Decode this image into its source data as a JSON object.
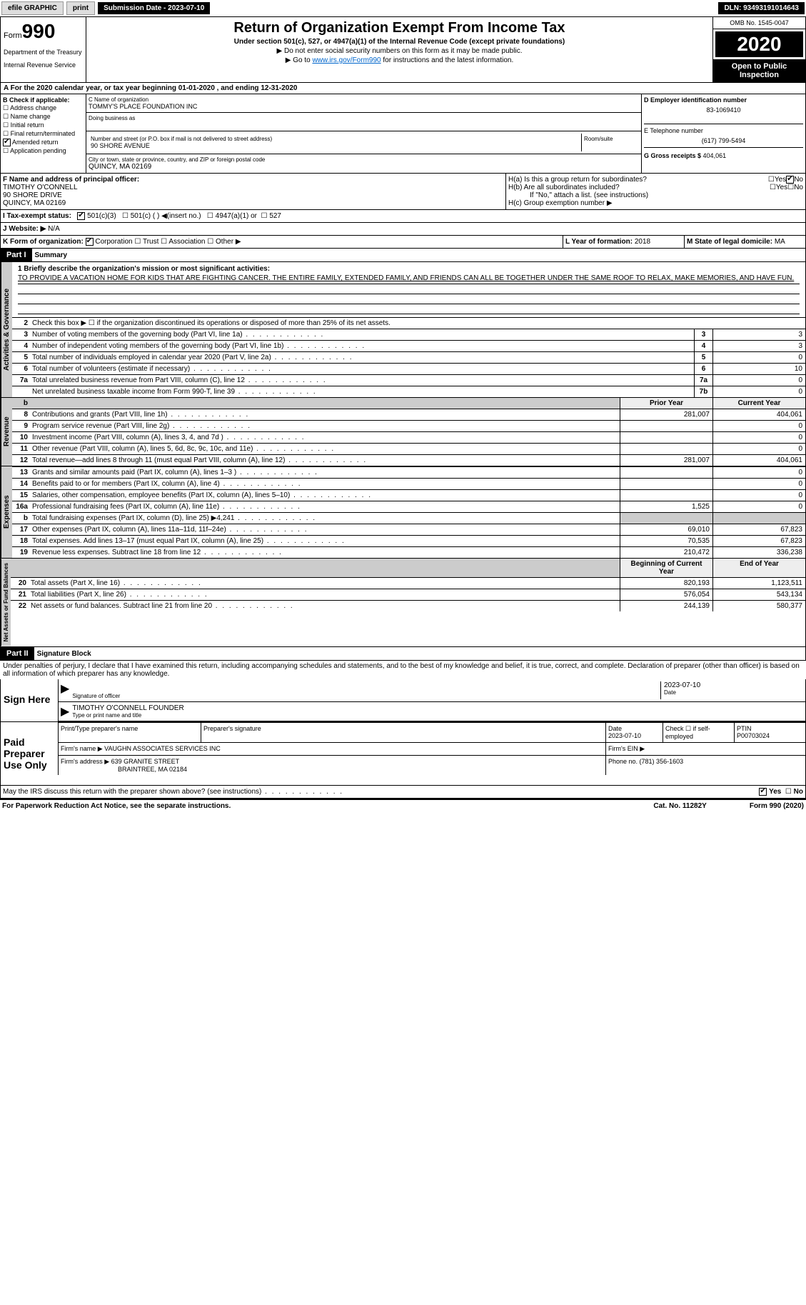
{
  "topbar": {
    "efile": "efile GRAPHIC",
    "print": "print",
    "subdate_label": "Submission Date - ",
    "subdate": "2023-07-10",
    "dln_label": "DLN: ",
    "dln": "93493191014643"
  },
  "header": {
    "form_label": "Form",
    "form_no": "990",
    "dept1": "Department of the Treasury",
    "dept2": "Internal Revenue Service",
    "title": "Return of Organization Exempt From Income Tax",
    "subtitle": "Under section 501(c), 527, or 4947(a)(1) of the Internal Revenue Code (except private foundations)",
    "instr1": "▶ Do not enter social security numbers on this form as it may be made public.",
    "instr2_pre": "▶ Go to ",
    "instr2_link": "www.irs.gov/Form990",
    "instr2_post": " for instructions and the latest information.",
    "omb": "OMB No. 1545-0047",
    "year": "2020",
    "open": "Open to Public Inspection"
  },
  "section_a": "A For the 2020 calendar year, or tax year beginning 01-01-2020   , and ending 12-31-2020",
  "box_b": {
    "label": "B Check if applicable:",
    "addr": "Address change",
    "name": "Name change",
    "init": "Initial return",
    "final": "Final return/terminated",
    "amend": "Amended return",
    "app": "Application pending"
  },
  "box_c": {
    "label": "C Name of organization",
    "name": "TOMMY'S PLACE FOUNDATION INC",
    "dba": "Doing business as",
    "addr_label": "Number and street (or P.O. box if mail is not delivered to street address)",
    "addr": "90 SHORE AVENUE",
    "room": "Room/suite",
    "city_label": "City or town, state or province, country, and ZIP or foreign postal code",
    "city": "QUINCY, MA  02169"
  },
  "box_d": {
    "label": "D Employer identification number",
    "val": "83-1069410"
  },
  "box_e": {
    "label": "E Telephone number",
    "val": "(617) 799-5494"
  },
  "box_g": {
    "label": "G Gross receipts $ ",
    "val": "404,061"
  },
  "box_f": {
    "label": "F Name and address of principal officer:",
    "name": "TIMOTHY O'CONNELL",
    "addr": "90 SHORE DRIVE",
    "city": "QUINCY, MA  02169"
  },
  "box_h": {
    "ha": "H(a)  Is this a group return for subordinates?",
    "hb": "H(b)  Are all subordinates included?",
    "hb_note": "If \"No,\" attach a list. (see instructions)",
    "hc": "H(c)  Group exemption number ▶",
    "yes": "Yes",
    "no": "No"
  },
  "row_i": {
    "label": "I   Tax-exempt status:",
    "o1": "501(c)(3)",
    "o2": "501(c) (  ) ◀(insert no.)",
    "o3": "4947(a)(1) or",
    "o4": "527"
  },
  "row_j": {
    "label": "J   Website: ▶  ",
    "val": "N/A"
  },
  "row_k": {
    "label": "K Form of organization:",
    "corp": "Corporation",
    "trust": "Trust",
    "assoc": "Association",
    "other": "Other ▶"
  },
  "row_l": {
    "label": "L Year of formation: ",
    "val": "2018"
  },
  "row_m": {
    "label": "M State of legal domicile: ",
    "val": "MA"
  },
  "part1": {
    "hdr": "Part I",
    "title": "Summary",
    "l1_label": "1  Briefly describe the organization's mission or most significant activities:",
    "l1_text": "TO PROVIDE A VACATION HOME FOR KIDS THAT ARE FIGHTING CANCER. THE ENTIRE FAMILY, EXTENDED FAMILY, AND FRIENDS CAN ALL BE TOGETHER UNDER THE SAME ROOF TO RELAX, MAKE MEMORIES, AND HAVE FUN.",
    "l2": "Check this box ▶ ☐ if the organization discontinued its operations or disposed of more than 25% of its net assets.",
    "tabs": {
      "gov": "Activities & Governance",
      "rev": "Revenue",
      "exp": "Expenses",
      "net": "Net Assets or Fund Balances"
    },
    "col_prior": "Prior Year",
    "col_curr": "Current Year",
    "col_beg": "Beginning of Current Year",
    "col_end": "End of Year",
    "lines_gov": [
      {
        "n": "3",
        "t": "Number of voting members of the governing body (Part VI, line 1a)",
        "box": "3",
        "v": "3"
      },
      {
        "n": "4",
        "t": "Number of independent voting members of the governing body (Part VI, line 1b)",
        "box": "4",
        "v": "3"
      },
      {
        "n": "5",
        "t": "Total number of individuals employed in calendar year 2020 (Part V, line 2a)",
        "box": "5",
        "v": "0"
      },
      {
        "n": "6",
        "t": "Total number of volunteers (estimate if necessary)",
        "box": "6",
        "v": "10"
      },
      {
        "n": "7a",
        "t": "Total unrelated business revenue from Part VIII, column (C), line 12",
        "box": "7a",
        "v": "0"
      },
      {
        "n": "",
        "t": "Net unrelated business taxable income from Form 990-T, line 39",
        "box": "7b",
        "v": "0"
      }
    ],
    "lines_rev": [
      {
        "n": "8",
        "t": "Contributions and grants (Part VIII, line 1h)",
        "p": "281,007",
        "c": "404,061"
      },
      {
        "n": "9",
        "t": "Program service revenue (Part VIII, line 2g)",
        "p": "",
        "c": "0"
      },
      {
        "n": "10",
        "t": "Investment income (Part VIII, column (A), lines 3, 4, and 7d )",
        "p": "",
        "c": "0"
      },
      {
        "n": "11",
        "t": "Other revenue (Part VIII, column (A), lines 5, 6d, 8c, 9c, 10c, and 11e)",
        "p": "",
        "c": "0"
      },
      {
        "n": "12",
        "t": "Total revenue—add lines 8 through 11 (must equal Part VIII, column (A), line 12)",
        "p": "281,007",
        "c": "404,061"
      }
    ],
    "lines_exp": [
      {
        "n": "13",
        "t": "Grants and similar amounts paid (Part IX, column (A), lines 1–3 )",
        "p": "",
        "c": "0"
      },
      {
        "n": "14",
        "t": "Benefits paid to or for members (Part IX, column (A), line 4)",
        "p": "",
        "c": "0"
      },
      {
        "n": "15",
        "t": "Salaries, other compensation, employee benefits (Part IX, column (A), lines 5–10)",
        "p": "",
        "c": "0"
      },
      {
        "n": "16a",
        "t": "Professional fundraising fees (Part IX, column (A), line 11e)",
        "p": "1,525",
        "c": "0"
      },
      {
        "n": "b",
        "t": "Total fundraising expenses (Part IX, column (D), line 25) ▶4,241",
        "p": "SHADE",
        "c": "SHADE"
      },
      {
        "n": "17",
        "t": "Other expenses (Part IX, column (A), lines 11a–11d, 11f–24e)",
        "p": "69,010",
        "c": "67,823"
      },
      {
        "n": "18",
        "t": "Total expenses. Add lines 13–17 (must equal Part IX, column (A), line 25)",
        "p": "70,535",
        "c": "67,823"
      },
      {
        "n": "19",
        "t": "Revenue less expenses. Subtract line 18 from line 12",
        "p": "210,472",
        "c": "336,238"
      }
    ],
    "lines_net": [
      {
        "n": "20",
        "t": "Total assets (Part X, line 16)",
        "p": "820,193",
        "c": "1,123,511"
      },
      {
        "n": "21",
        "t": "Total liabilities (Part X, line 26)",
        "p": "576,054",
        "c": "543,134"
      },
      {
        "n": "22",
        "t": "Net assets or fund balances. Subtract line 21 from line 20",
        "p": "244,139",
        "c": "580,377"
      }
    ]
  },
  "part2": {
    "hdr": "Part II",
    "title": "Signature Block",
    "decl": "Under penalties of perjury, I declare that I have examined this return, including accompanying schedules and statements, and to the best of my knowledge and belief, it is true, correct, and complete. Declaration of preparer (other than officer) is based on all information of which preparer has any knowledge.",
    "sign_here": "Sign Here",
    "sig_officer": "Signature of officer",
    "date": "Date",
    "sig_date": "2023-07-10",
    "name_title": "TIMOTHY O'CONNELL  FOUNDER",
    "type_name": "Type or print name and title",
    "paid_prep": "Paid Preparer Use Only",
    "prep_name_label": "Print/Type preparer's name",
    "prep_sig_label": "Preparer's signature",
    "prep_date_label": "Date",
    "prep_date": "2023-07-10",
    "self_emp": "Check ☐ if self-employed",
    "ptin_label": "PTIN",
    "ptin": "P00703024",
    "firm_name_label": "Firm's name    ▶ ",
    "firm_name": "VAUGHN ASSOCIATES SERVICES INC",
    "firm_ein_label": "Firm's EIN ▶",
    "firm_addr_label": "Firm's address ▶ ",
    "firm_addr1": "639 GRANITE STREET",
    "firm_addr2": "BRAINTREE, MA  02184",
    "phone_label": "Phone no. ",
    "phone": "(781) 356-1603",
    "discuss": "May the IRS discuss this return with the preparer shown above? (see instructions)",
    "yes": "Yes",
    "no": "No"
  },
  "footer": {
    "pra": "For Paperwork Reduction Act Notice, see the separate instructions.",
    "cat": "Cat. No. 11282Y",
    "form": "Form 990 (2020)"
  }
}
